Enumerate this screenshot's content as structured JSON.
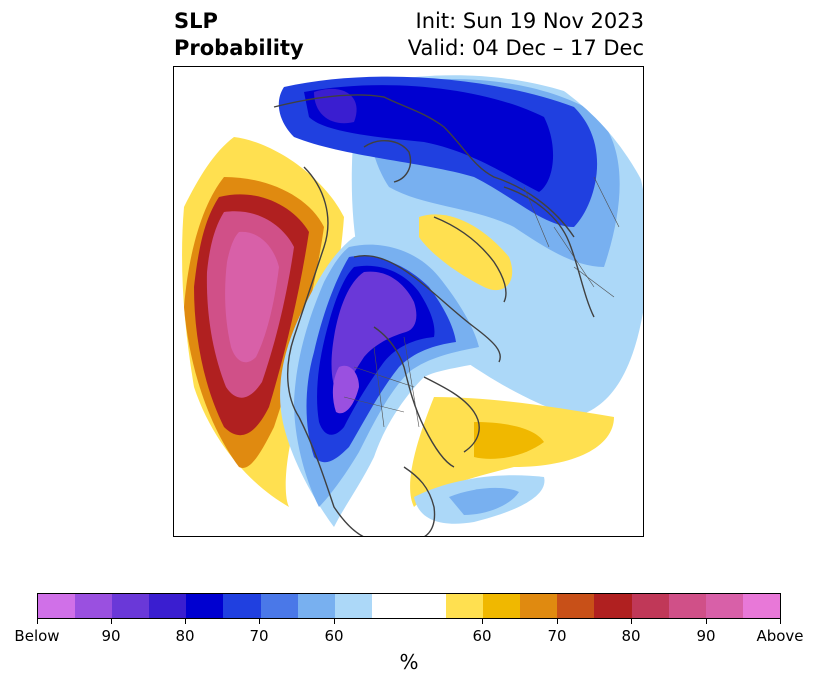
{
  "title": {
    "left_line1": "SLP",
    "left_line2": "Probability",
    "right_line1": "Init: Sun 19 Nov 2023",
    "right_line2": "Valid: 04 Dec – 17 Dec"
  },
  "colorbar": {
    "unit": "%",
    "colors": [
      "#d070e8",
      "#9a50e0",
      "#6a38d8",
      "#3a1ed0",
      "#0000d0",
      "#2040e0",
      "#4a78e8",
      "#78b0f0",
      "#acd8f8",
      "#ffffff",
      "#ffe050",
      "#f0b800",
      "#e08a10",
      "#c85018",
      "#b02020",
      "#c03858",
      "#d05088",
      "#d860a8",
      "#e878d8"
    ],
    "tick_labels": [
      "Below",
      "90",
      "80",
      "70",
      "60",
      "60",
      "70",
      "80",
      "90",
      "Above"
    ]
  },
  "map": {
    "projection": "north-polar-stereographic",
    "palette": {
      "below_strong": "#6a38d8",
      "below_mid": "#0000d0",
      "below_light": "#78b0f0",
      "below_faint": "#acd8f8",
      "above_faint": "#ffe050",
      "above_mid": "#f0b800",
      "above_strong": "#b02020",
      "above_max": "#d860a8",
      "coast": "#404040"
    }
  }
}
